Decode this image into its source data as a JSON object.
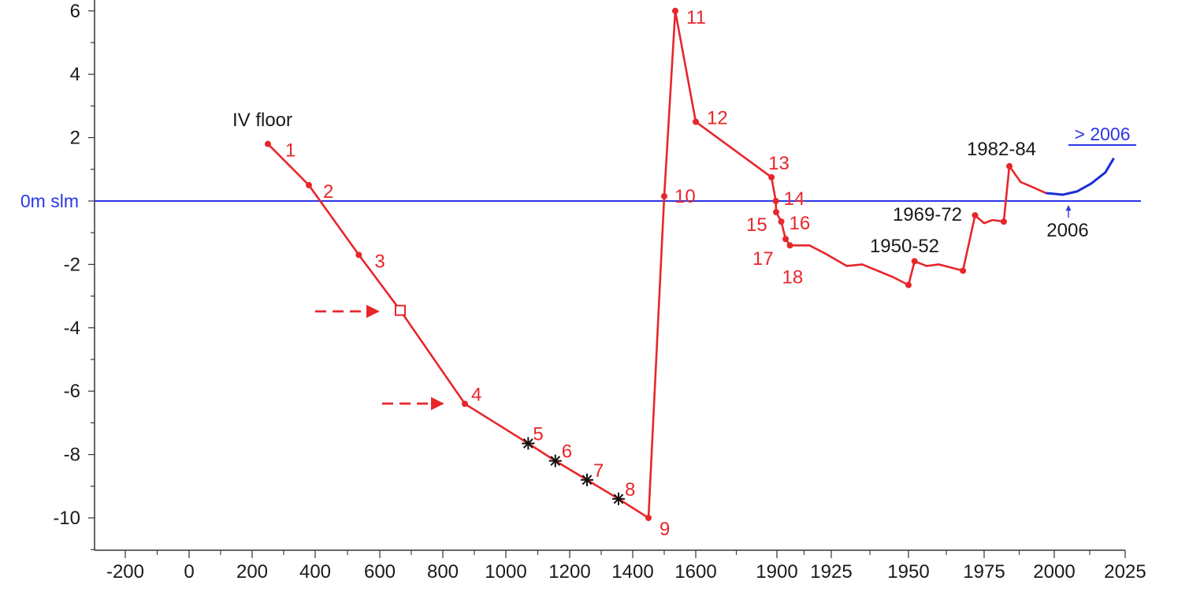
{
  "chart_data": {
    "type": "line",
    "title": "",
    "xlabel": "",
    "ylabel": "",
    "x_ticks": [
      "-200",
      "0",
      "200",
      "400",
      "600",
      "800",
      "1000",
      "1200",
      "1400",
      "1600",
      "1900",
      "1925",
      "1950",
      "1975",
      "2000",
      "2025"
    ],
    "y_ticks": [
      "6",
      "4",
      "2",
      "0m slm",
      "-2",
      "-4",
      "-6",
      "-8",
      "-10"
    ],
    "ylim": [
      -11,
      6.5
    ],
    "grid": false,
    "legend": "none",
    "reference_line": {
      "y": 0,
      "label": "0m slm",
      "color": "#2b36e8"
    },
    "colors": {
      "series": "#e8262b",
      "projection": "#1d2fd4",
      "reference": "#2b36e8",
      "text": "#1a1a1a"
    },
    "series": [
      {
        "points": [
          {
            "x": 250,
            "y": 1.8,
            "label": "1",
            "marker": "dot"
          },
          {
            "x": 380,
            "y": 0.5,
            "label": "2",
            "marker": "dot"
          },
          {
            "x": 535,
            "y": -1.7,
            "label": "3",
            "marker": "dot"
          },
          {
            "x": 665,
            "y": -3.45,
            "label": "",
            "marker": "square"
          },
          {
            "x": 870,
            "y": -6.4,
            "label": "4",
            "marker": "dot"
          },
          {
            "x": 1070,
            "y": -7.65,
            "label": "5",
            "marker": "star"
          },
          {
            "x": 1155,
            "y": -8.2,
            "label": "6",
            "marker": "star"
          },
          {
            "x": 1255,
            "y": -8.8,
            "label": "7",
            "marker": "star"
          },
          {
            "x": 1355,
            "y": -9.4,
            "label": "8",
            "marker": "star"
          },
          {
            "x": 1450,
            "y": -10.0,
            "label": "9",
            "marker": "dot"
          },
          {
            "x": 1500,
            "y": 0.15,
            "label": "10",
            "marker": "dot"
          },
          {
            "x": 1535,
            "y": 6.0,
            "label": "11",
            "marker": "dot"
          },
          {
            "x": 1600,
            "y": 2.5,
            "label": "12",
            "marker": "dot"
          },
          {
            "x": 1880,
            "y": 0.75,
            "label": "13",
            "marker": "dot"
          },
          {
            "x": 1896,
            "y": 0.0,
            "label": "14",
            "marker": "dot"
          },
          {
            "x": 1897,
            "y": -0.35,
            "label": "15",
            "marker": "dot"
          },
          {
            "x": 1902,
            "y": -0.65,
            "label": "16",
            "marker": "dot"
          },
          {
            "x": 1904,
            "y": -1.2,
            "label": "17",
            "marker": "dot"
          },
          {
            "x": 1906,
            "y": -1.4,
            "label": "18",
            "marker": "dot"
          },
          {
            "x": 1915,
            "y": -1.4,
            "label": "",
            "marker": "none"
          },
          {
            "x": 1922,
            "y": -1.65,
            "label": "",
            "marker": "none"
          },
          {
            "x": 1930,
            "y": -2.05,
            "label": "",
            "marker": "none"
          },
          {
            "x": 1935,
            "y": -2.0,
            "label": "",
            "marker": "none"
          },
          {
            "x": 1945,
            "y": -2.4,
            "label": "",
            "marker": "none"
          },
          {
            "x": 1950,
            "y": -2.65,
            "label": "",
            "marker": "dot"
          },
          {
            "x": 1952,
            "y": -1.9,
            "label": "",
            "marker": "dot"
          },
          {
            "x": 1956,
            "y": -2.05,
            "label": "",
            "marker": "none"
          },
          {
            "x": 1960,
            "y": -2.0,
            "label": "",
            "marker": "none"
          },
          {
            "x": 1964,
            "y": -2.1,
            "label": "",
            "marker": "none"
          },
          {
            "x": 1968,
            "y": -2.2,
            "label": "",
            "marker": "dot"
          },
          {
            "x": 1972,
            "y": -0.45,
            "label": "",
            "marker": "dot"
          },
          {
            "x": 1975,
            "y": -0.7,
            "label": "",
            "marker": "none"
          },
          {
            "x": 1978,
            "y": -0.6,
            "label": "",
            "marker": "none"
          },
          {
            "x": 1982,
            "y": -0.65,
            "label": "",
            "marker": "dot"
          },
          {
            "x": 1984,
            "y": 1.1,
            "label": "",
            "marker": "dot"
          },
          {
            "x": 1988,
            "y": 0.6,
            "label": "",
            "marker": "none"
          },
          {
            "x": 1992,
            "y": 0.45,
            "label": "",
            "marker": "none"
          },
          {
            "x": 1997,
            "y": 0.25,
            "label": "",
            "marker": "none"
          }
        ]
      },
      {
        "points": [
          {
            "x": 1997,
            "y": 0.25
          },
          {
            "x": 2003,
            "y": 0.2
          },
          {
            "x": 2008,
            "y": 0.3
          },
          {
            "x": 2013,
            "y": 0.55
          },
          {
            "x": 2018,
            "y": 0.9
          },
          {
            "x": 2021,
            "y": 1.35
          }
        ]
      }
    ],
    "annotations": [
      {
        "text": "IV floor",
        "x": 250,
        "y": 2.6
      },
      {
        "text": "1950-52",
        "x": 1952,
        "y": -1.4
      },
      {
        "text": "1969-72",
        "x": 1968,
        "y": -0.4
      },
      {
        "text": "1982-84",
        "x": 1983,
        "y": 1.7
      },
      {
        "text": "2006",
        "x": 2006,
        "y": -0.95
      },
      {
        "text": "> 2006",
        "x": 2016,
        "y": 2.1
      }
    ],
    "arrows": [
      {
        "to_x": 665,
        "to_y": -3.45
      },
      {
        "to_x": 870,
        "to_y": -6.4
      }
    ]
  }
}
